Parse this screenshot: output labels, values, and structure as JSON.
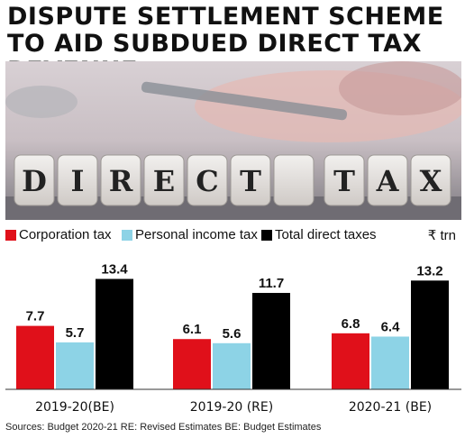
{
  "title": "DISPUTE SETTLEMENT SCHEME TO AID SUBDUED DIRECT TAX REVENUE",
  "photo": {
    "blocks": [
      "D",
      "I",
      "R",
      "E",
      "C",
      "T",
      "",
      "T",
      "A",
      "X"
    ]
  },
  "unit": "₹ trn",
  "source": "Sources: Budget 2020-21  RE: Revised Estimates   BE: Budget Estimates",
  "colors": {
    "corporation": "#e0101a",
    "personal": "#8dd3e6",
    "total": "#000000"
  },
  "chart_data": {
    "type": "bar",
    "categories": [
      "2019-20(BE)",
      "2019-20 (RE)",
      "2020-21 (BE)"
    ],
    "series": [
      {
        "name": "Corporation tax",
        "values": [
          7.7,
          6.1,
          6.8
        ]
      },
      {
        "name": "Personal income tax",
        "values": [
          5.7,
          5.6,
          6.4
        ]
      },
      {
        "name": "Total direct taxes",
        "values": [
          13.4,
          11.7,
          13.2
        ]
      }
    ],
    "title": "DISPUTE SETTLEMENT SCHEME TO AID SUBDUED DIRECT TAX REVENUE",
    "xlabel": "",
    "ylabel": "",
    "ylim": [
      0,
      14
    ],
    "grid": false,
    "legend": "top-left"
  }
}
